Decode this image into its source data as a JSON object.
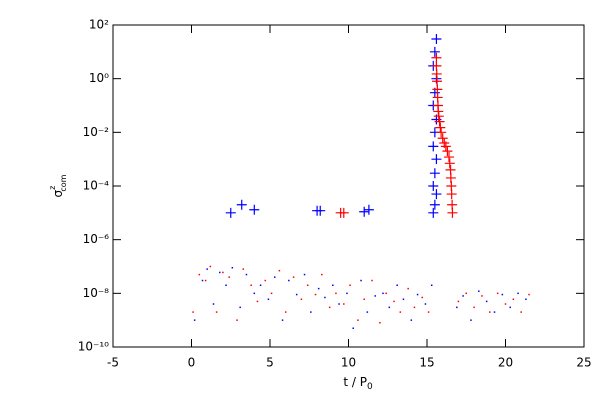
{
  "chart_data": {
    "type": "scatter",
    "xlabel": {
      "text": "t / P",
      "sub": "0"
    },
    "ylabel": {
      "symbol": "σ",
      "sup": "z",
      "sub": "com"
    },
    "xlim": [
      -5,
      25
    ],
    "xticks": [
      -5,
      0,
      5,
      10,
      15,
      20,
      25
    ],
    "ylim": [
      1e-10,
      100
    ],
    "ylog": true,
    "yticks": [
      {
        "value": 1e-10,
        "label": "10⁻¹⁰"
      },
      {
        "value": 1e-08,
        "label": "10⁻⁸"
      },
      {
        "value": 1e-06,
        "label": "10⁻⁶"
      },
      {
        "value": 0.0001,
        "label": "10⁻⁴"
      },
      {
        "value": 0.01,
        "label": "10⁻²"
      },
      {
        "value": 1,
        "label": "10⁰"
      },
      {
        "value": 100,
        "label": "10²"
      }
    ],
    "series": [
      {
        "color": "#ff0000",
        "marker": "dot",
        "x": [
          0.1,
          0.5,
          0.9,
          1.2,
          1.6,
          2.0,
          2.4,
          2.9,
          3.3,
          3.8,
          4.2,
          4.7,
          5.1,
          5.6,
          6.0,
          6.5,
          7.0,
          7.4,
          7.9,
          8.3,
          8.8,
          9.2,
          9.7,
          10.1,
          10.6,
          11.0,
          11.5,
          12.0,
          12.4,
          12.9,
          13.3,
          13.8,
          14.2,
          14.7,
          15.1,
          17.0,
          17.5,
          18.0,
          18.5,
          19.0,
          19.5,
          20.0,
          20.5,
          21.0,
          21.5
        ],
        "values": [
          2e-09,
          5e-08,
          3e-08,
          1e-07,
          2e-09,
          6e-08,
          4e-08,
          1e-09,
          8e-08,
          2e-08,
          5e-09,
          3e-08,
          1e-08,
          7e-08,
          2e-09,
          4e-08,
          6e-09,
          2e-08,
          9e-09,
          5e-08,
          3e-09,
          1e-08,
          4e-09,
          2e-08,
          1e-09,
          6e-09,
          3e-08,
          8e-10,
          1e-08,
          5e-09,
          2e-09,
          1.5e-08,
          3e-09,
          7e-09,
          2e-09,
          5e-09,
          1e-08,
          3e-09,
          8e-09,
          2e-09,
          1e-08,
          4e-09,
          6e-09,
          2e-09,
          9e-09
        ]
      },
      {
        "color": "#0000ff",
        "marker": "dot",
        "x": [
          0.2,
          0.7,
          1.0,
          1.4,
          1.8,
          2.2,
          2.6,
          3.1,
          3.5,
          4.0,
          4.4,
          4.9,
          5.3,
          5.8,
          6.2,
          6.7,
          7.2,
          7.6,
          8.1,
          8.5,
          9.0,
          9.4,
          9.9,
          10.3,
          10.8,
          11.2,
          11.7,
          12.2,
          12.6,
          13.1,
          13.5,
          14.0,
          14.4,
          14.9,
          15.3,
          16.9,
          17.3,
          17.8,
          18.3,
          18.8,
          19.3,
          19.8,
          20.3,
          20.8,
          21.3
        ],
        "values": [
          1e-09,
          3e-08,
          8e-08,
          4e-09,
          6e-08,
          2e-08,
          9e-08,
          3e-09,
          5e-08,
          1e-08,
          2e-08,
          6e-09,
          4e-08,
          1e-09,
          3e-08,
          9e-09,
          5e-08,
          2e-09,
          1.5e-08,
          7e-09,
          2e-08,
          4e-09,
          1e-08,
          5e-10,
          3e-08,
          2e-09,
          8e-09,
          1e-08,
          3e-09,
          2e-08,
          6e-09,
          1e-09,
          9e-09,
          4e-09,
          2e-08,
          3e-09,
          8e-09,
          1e-09,
          1.2e-08,
          5e-09,
          2e-09,
          9e-09,
          3e-09,
          1e-08,
          6e-09
        ]
      },
      {
        "color": "#0000ff",
        "marker": "plus",
        "x": [
          2.5,
          3.2,
          4.0,
          8.0,
          8.2,
          11.0,
          11.3,
          15.4,
          15.5,
          15.6,
          15.4,
          15.5,
          15.6,
          15.4,
          15.5,
          15.6,
          15.4,
          15.5,
          15.6,
          15.4,
          15.5,
          15.6
        ],
        "values": [
          1e-05,
          2e-05,
          1.3e-05,
          1.2e-05,
          1.2e-05,
          1.1e-05,
          1.3e-05,
          1e-05,
          2e-05,
          5e-05,
          0.0001,
          0.0003,
          0.001,
          0.003,
          0.01,
          0.03,
          0.1,
          0.3,
          1,
          3,
          10,
          30
        ]
      },
      {
        "color": "#ff0000",
        "marker": "plus",
        "x": [
          9.5,
          9.7,
          15.6,
          15.6,
          15.62,
          15.64,
          15.66,
          15.68,
          15.7,
          15.72,
          15.75,
          15.8,
          15.85,
          15.9,
          16.0,
          16.1,
          16.2,
          16.3,
          16.4,
          16.45,
          16.5,
          16.52,
          16.55,
          16.57,
          16.6,
          16.62
        ],
        "values": [
          1e-05,
          1e-05,
          6,
          3,
          1.5,
          0.8,
          0.4,
          0.2,
          0.1,
          0.06,
          0.04,
          0.025,
          0.015,
          0.01,
          0.006,
          0.004,
          0.003,
          0.002,
          0.0012,
          0.0007,
          0.0004,
          0.0002,
          0.0001,
          5e-05,
          2e-05,
          1e-05
        ]
      }
    ]
  }
}
